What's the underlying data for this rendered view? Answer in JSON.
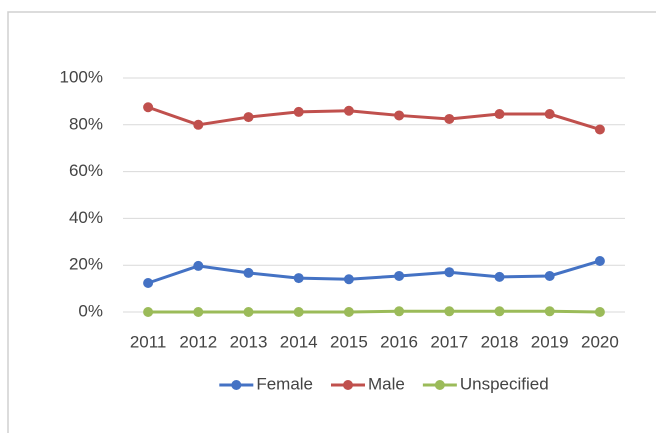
{
  "chart_data": {
    "type": "line",
    "categories": [
      "2011",
      "2012",
      "2013",
      "2014",
      "2015",
      "2016",
      "2017",
      "2018",
      "2019",
      "2020"
    ],
    "series": [
      {
        "name": "Female",
        "color": "#4472c4",
        "values": [
          12.4,
          19.7,
          16.7,
          14.5,
          14,
          15.4,
          17,
          15,
          15.4,
          21.8
        ]
      },
      {
        "name": "Male",
        "color": "#c0504d",
        "values": [
          87.5,
          80,
          83.3,
          85.5,
          86,
          84,
          82.5,
          84.6,
          84.6,
          78
        ]
      },
      {
        "name": "Unspecified",
        "color": "#9bbb59",
        "values": [
          0,
          0,
          0,
          0,
          0,
          0.3,
          0.3,
          0.3,
          0.3,
          0
        ]
      }
    ],
    "ylim": [
      0,
      100
    ],
    "yticks": [
      {
        "value": 0,
        "label": "0%"
      },
      {
        "value": 20,
        "label": "20%"
      },
      {
        "value": 40,
        "label": "40%"
      },
      {
        "value": 60,
        "label": "60%"
      },
      {
        "value": 80,
        "label": "80%"
      },
      {
        "value": 100,
        "label": "100%"
      }
    ],
    "grid": true
  }
}
